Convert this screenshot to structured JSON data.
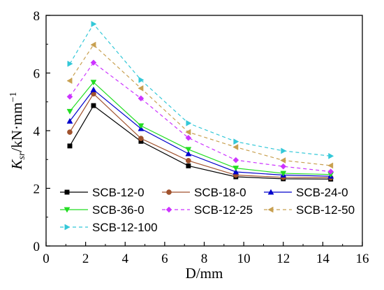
{
  "chart_data": {
    "type": "line",
    "xlabel": "D/mm",
    "ylabel_main": "K",
    "ylabel_sub": "sr",
    "ylabel_rest": "/kN·mm",
    "ylabel_sup": "−1",
    "xlim": [
      0,
      16
    ],
    "ylim": [
      0,
      8
    ],
    "xticks": [
      0,
      2,
      4,
      6,
      8,
      10,
      12,
      14,
      16
    ],
    "yticks": [
      0,
      2,
      4,
      6,
      8
    ],
    "grid": false,
    "legend_position": "bottom-left",
    "x": [
      1.2,
      2.4,
      4.8,
      7.2,
      9.6,
      12.0,
      14.4
    ],
    "series": [
      {
        "name": "SCB-12-0",
        "color": "#000000",
        "marker": "square",
        "dash": "solid",
        "values": [
          3.47,
          4.87,
          3.63,
          2.78,
          2.4,
          2.33,
          2.32
        ]
      },
      {
        "name": "SCB-18-0",
        "color": "#a0522d",
        "marker": "circle",
        "dash": "solid",
        "values": [
          3.95,
          5.28,
          3.73,
          2.96,
          2.46,
          2.38,
          2.37
        ]
      },
      {
        "name": "SCB-24-0",
        "color": "#0000cc",
        "marker": "triangle-up",
        "dash": "solid",
        "values": [
          4.33,
          5.42,
          4.07,
          3.2,
          2.57,
          2.46,
          2.42
        ]
      },
      {
        "name": "SCB-36-0",
        "color": "#22dd22",
        "marker": "triangle-down",
        "dash": "solid",
        "values": [
          4.67,
          5.68,
          4.17,
          3.35,
          2.7,
          2.52,
          2.48
        ]
      },
      {
        "name": "SCB-12-25",
        "color": "#cc33ff",
        "marker": "diamond",
        "dash": "dashed",
        "values": [
          5.18,
          6.36,
          5.12,
          3.75,
          2.98,
          2.76,
          2.58
        ]
      },
      {
        "name": "SCB-12-50",
        "color": "#c8a050",
        "marker": "triangle-left",
        "dash": "dashed",
        "values": [
          5.73,
          6.98,
          5.47,
          3.95,
          3.43,
          2.97,
          2.79
        ]
      },
      {
        "name": "SCB-12-100",
        "color": "#33c8d8",
        "marker": "triangle-right",
        "dash": "dashed",
        "values": [
          6.32,
          7.7,
          5.76,
          4.26,
          3.62,
          3.3,
          3.12
        ]
      }
    ]
  }
}
